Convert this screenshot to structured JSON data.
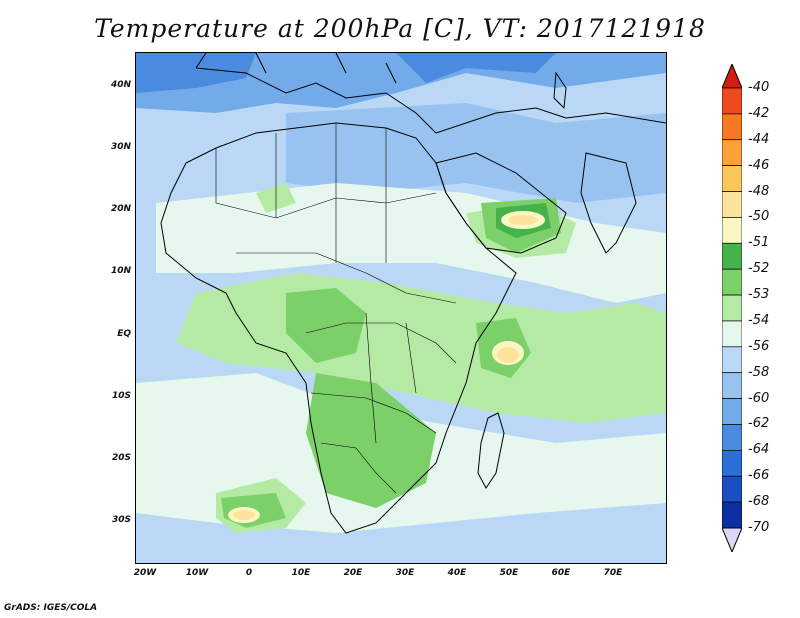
{
  "title": "Temperature at 200hPa [C], VT: 2017121918",
  "credit": "GrADS: IGES/COLA",
  "lat_labels": [
    "40N",
    "30N",
    "20N",
    "10N",
    "EQ",
    "10S",
    "20S",
    "30S"
  ],
  "lon_labels": [
    "20W",
    "10W",
    "0",
    "10E",
    "20E",
    "30E",
    "40E",
    "50E",
    "60E",
    "70E"
  ],
  "colorbar": {
    "labels": [
      "-40",
      "-42",
      "-44",
      "-46",
      "-48",
      "-50",
      "-51",
      "-52",
      "-53",
      "-54",
      "-56",
      "-58",
      "-60",
      "-62",
      "-64",
      "-66",
      "-68",
      "-70"
    ],
    "colors": [
      "#d81b10",
      "#ef4a1e",
      "#f7791f",
      "#f9a23a",
      "#fbc65a",
      "#fde49a",
      "#fbf7c4",
      "#45b24a",
      "#7bd06a",
      "#b4eaa3",
      "#e6f7ee",
      "#bad8f6",
      "#98c2f0",
      "#72aaea",
      "#4a8be0",
      "#2c6fd6",
      "#1a4fc2",
      "#0e2fa0",
      "#0a1a6e"
    ]
  }
}
